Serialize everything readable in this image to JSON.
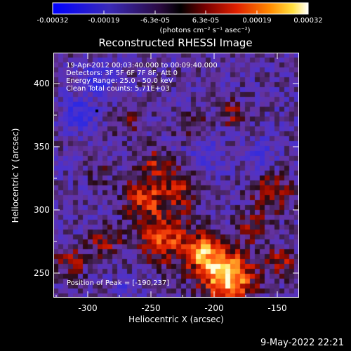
{
  "colorbar": {
    "tick_labels": [
      "-0.00032",
      "-0.00019",
      "-6.3e-05",
      "6.3e-05",
      "0.00019",
      "0.00032"
    ],
    "units": "(photons cm⁻² s⁻¹ asec⁻²)"
  },
  "plot": {
    "title": "Reconstructed RHESSI Image",
    "info_lines": [
      "19-Apr-2012 00:03:40.000 to 00:09:40.000",
      "Detectors: 3F 5F 6F 7F 8F, Att 0",
      "Energy Range: 25.0 - 50.0 keV",
      "Clean    Total counts: 5.71E+03"
    ],
    "peak_text": "Position of Peak = [-190,237]",
    "xlabel": "Heliocentric X (arcsec)",
    "ylabel": "Heliocentric Y (arcsec)",
    "x_ticks": [
      "-300",
      "-250",
      "-200",
      "-150"
    ],
    "y_ticks": [
      "400",
      "350",
      "300",
      "250"
    ],
    "x_range": [
      -330,
      -135
    ],
    "y_range": [
      231,
      425
    ]
  },
  "footer": {
    "date": "9-May-2022 22:21"
  },
  "colors": {
    "background": "#000000",
    "text": "#ffffff"
  }
}
